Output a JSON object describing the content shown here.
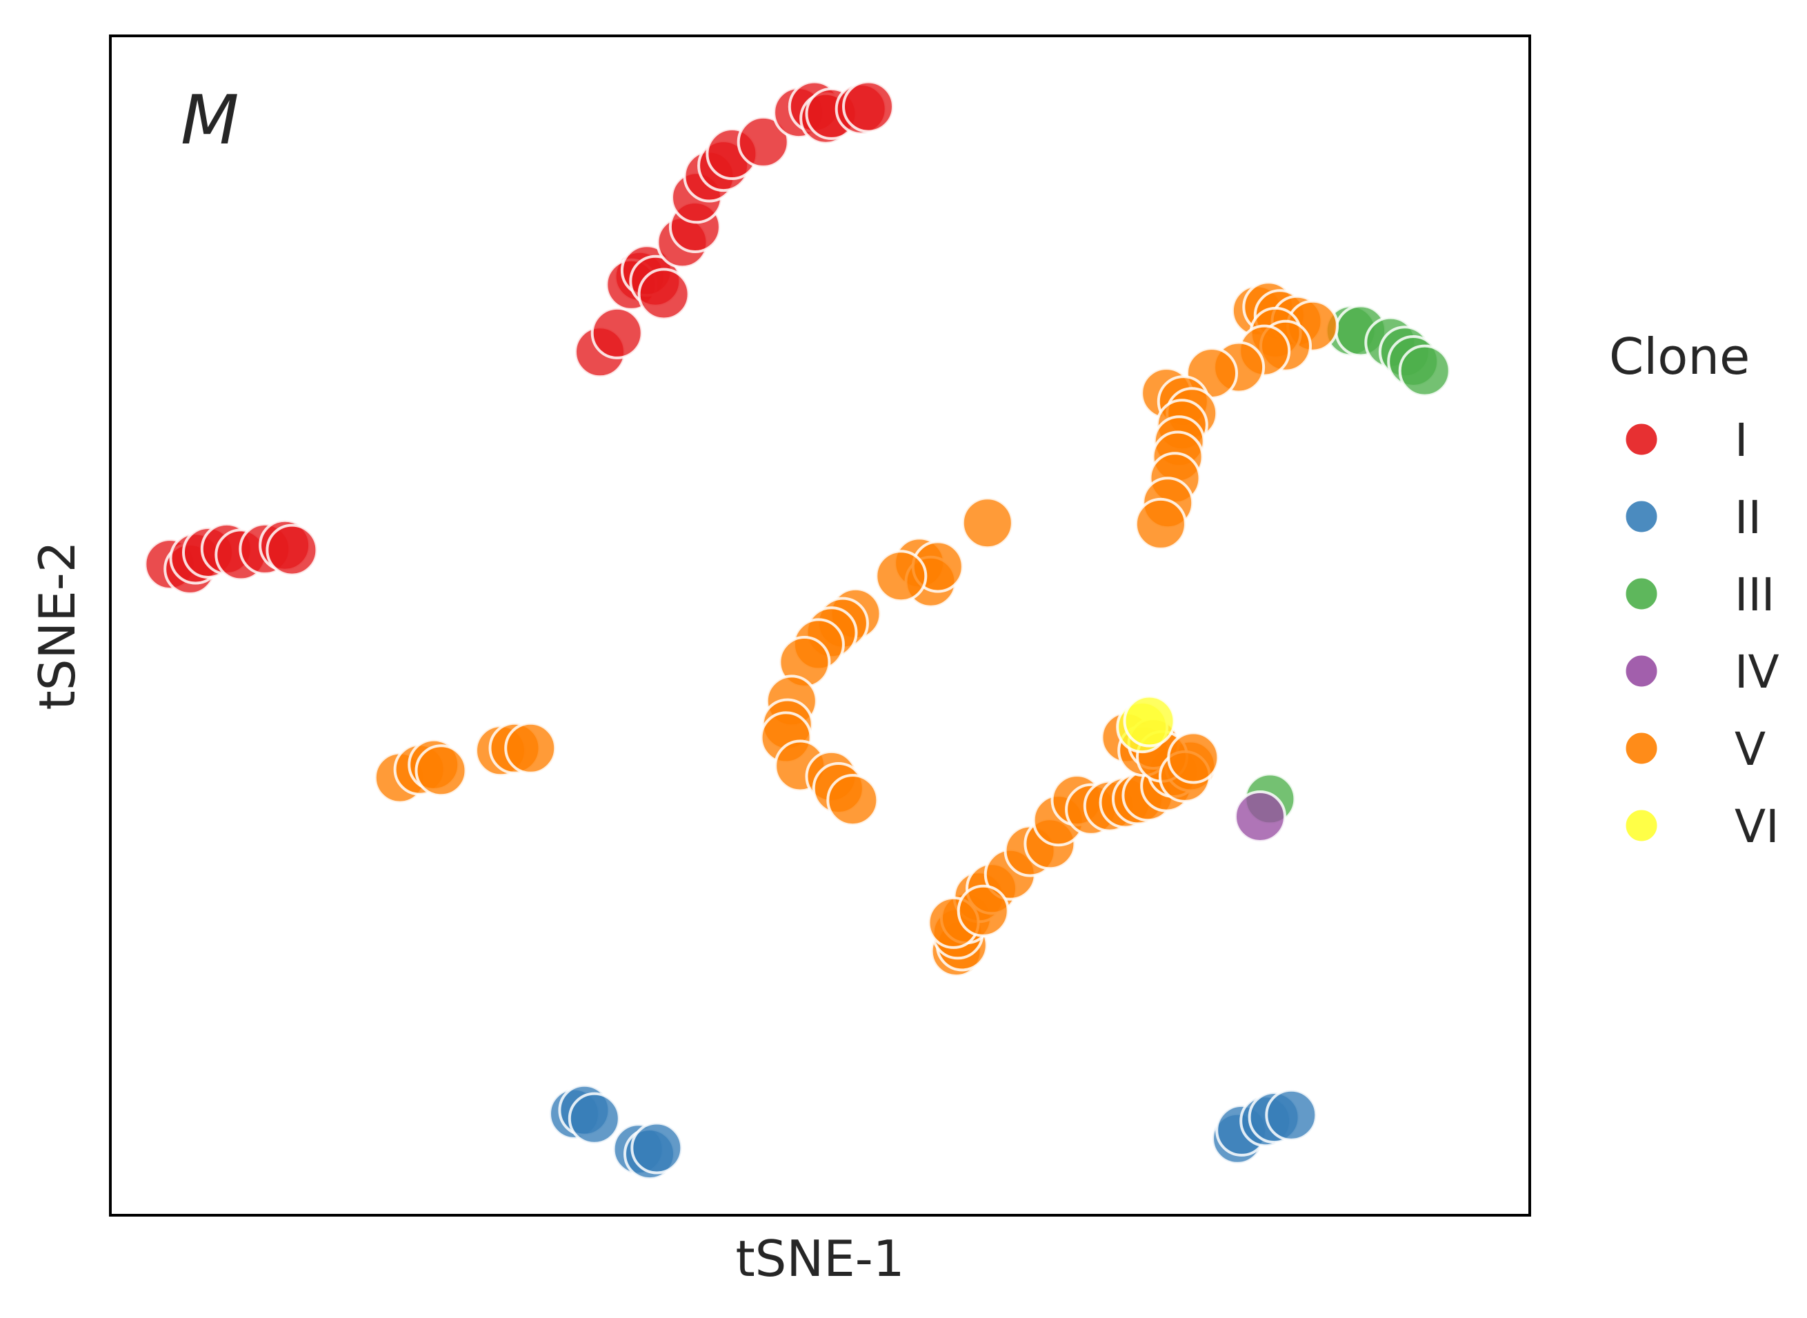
{
  "chart_data": {
    "type": "scatter",
    "panel_label": "M",
    "xlabel": "tSNE-1",
    "ylabel": "tSNE-2",
    "xlim": [
      0,
      100
    ],
    "ylim": [
      0,
      100
    ],
    "grid": false,
    "ticks": false,
    "legend": {
      "title": "Clone",
      "placement": "right"
    },
    "colors": {
      "I": "#e41a1c",
      "II": "#377eb8",
      "III": "#4daf4a",
      "IV": "#984ea3",
      "V": "#ff7f00",
      "VI": "#ffff33"
    },
    "series": [
      {
        "name": "I",
        "points": [
          [
            34.5,
            73.2
          ],
          [
            35.7,
            74.8
          ],
          [
            37.3,
            79.6
          ],
          [
            36.7,
            78.9
          ],
          [
            37.8,
            80.1
          ],
          [
            38.4,
            79.2
          ],
          [
            39.0,
            78.1
          ],
          [
            40.3,
            82.5
          ],
          [
            41.2,
            83.8
          ],
          [
            41.3,
            86.3
          ],
          [
            42.2,
            88.1
          ],
          [
            43.2,
            89.0
          ],
          [
            43.8,
            90.0
          ],
          [
            46.0,
            91.0
          ],
          [
            48.5,
            93.5
          ],
          [
            49.6,
            94.0
          ],
          [
            50.4,
            93.0
          ],
          [
            50.8,
            93.4
          ],
          [
            52.9,
            93.8
          ],
          [
            53.4,
            94.0
          ],
          [
            4.2,
            55.2
          ],
          [
            5.6,
            54.8
          ],
          [
            6.0,
            55.7
          ],
          [
            6.9,
            56.2
          ],
          [
            8.2,
            56.5
          ],
          [
            9.2,
            56.0
          ],
          [
            10.9,
            56.5
          ],
          [
            12.3,
            56.8
          ],
          [
            12.8,
            56.4
          ]
        ]
      },
      {
        "name": "II",
        "points": [
          [
            32.7,
            8.6
          ],
          [
            33.4,
            8.9
          ],
          [
            34.1,
            8.2
          ],
          [
            37.2,
            5.6
          ],
          [
            38.0,
            5.2
          ],
          [
            38.5,
            5.7
          ],
          [
            79.4,
            6.5
          ],
          [
            79.7,
            7.2
          ],
          [
            81.4,
            8.0
          ],
          [
            82.0,
            8.3
          ],
          [
            83.2,
            8.5
          ]
        ]
      },
      {
        "name": "III",
        "points": [
          [
            87.4,
            75.0
          ],
          [
            88.1,
            75.0
          ],
          [
            90.2,
            74.0
          ],
          [
            91.2,
            73.2
          ],
          [
            91.8,
            72.4
          ],
          [
            92.6,
            71.6
          ],
          [
            81.7,
            35.3
          ]
        ]
      },
      {
        "name": "IV",
        "points": [
          [
            81.0,
            33.8
          ]
        ]
      },
      {
        "name": "V",
        "points": [
          [
            80.8,
            76.7
          ],
          [
            81.6,
            77.0
          ],
          [
            82.4,
            76.3
          ],
          [
            83.6,
            75.8
          ],
          [
            84.7,
            75.4
          ],
          [
            82.1,
            74.8
          ],
          [
            82.8,
            73.7
          ],
          [
            81.3,
            73.3
          ],
          [
            79.5,
            71.9
          ],
          [
            77.6,
            71.4
          ],
          [
            74.4,
            69.7
          ],
          [
            75.6,
            69.0
          ],
          [
            76.2,
            68.0
          ],
          [
            75.5,
            67.0
          ],
          [
            75.3,
            65.6
          ],
          [
            75.2,
            64.3
          ],
          [
            75.0,
            62.5
          ],
          [
            74.5,
            60.4
          ],
          [
            74.0,
            58.6
          ],
          [
            61.8,
            58.7
          ],
          [
            57.0,
            55.3
          ],
          [
            57.8,
            53.7
          ],
          [
            58.3,
            55.0
          ],
          [
            55.7,
            54.2
          ],
          [
            52.5,
            51.0
          ],
          [
            51.6,
            50.2
          ],
          [
            50.8,
            49.4
          ],
          [
            49.9,
            48.4
          ],
          [
            48.9,
            46.9
          ],
          [
            48.0,
            43.6
          ],
          [
            47.7,
            41.6
          ],
          [
            47.6,
            40.5
          ],
          [
            48.6,
            38.1
          ],
          [
            50.8,
            37.2
          ],
          [
            51.3,
            36.2
          ],
          [
            52.3,
            35.2
          ],
          [
            20.4,
            37.1
          ],
          [
            21.8,
            37.8
          ],
          [
            22.8,
            38.2
          ],
          [
            23.3,
            37.7
          ],
          [
            27.5,
            39.4
          ],
          [
            28.5,
            39.6
          ],
          [
            29.6,
            39.6
          ],
          [
            59.6,
            22.4
          ],
          [
            60.0,
            22.9
          ],
          [
            59.7,
            23.9
          ],
          [
            60.3,
            25.2
          ],
          [
            61.2,
            27.0
          ],
          [
            62.1,
            27.7
          ],
          [
            63.4,
            28.9
          ],
          [
            64.8,
            30.9
          ],
          [
            66.2,
            31.5
          ],
          [
            66.8,
            33.5
          ],
          [
            68.1,
            35.2
          ],
          [
            69.1,
            34.4
          ],
          [
            70.4,
            34.7
          ],
          [
            71.5,
            35.0
          ],
          [
            72.4,
            35.3
          ],
          [
            73.1,
            35.6
          ],
          [
            74.4,
            36.4
          ],
          [
            74.9,
            37.6
          ],
          [
            76.1,
            38.1
          ],
          [
            71.6,
            40.5
          ],
          [
            72.8,
            39.4
          ],
          [
            73.5,
            40.0
          ],
          [
            74.1,
            38.9
          ],
          [
            75.7,
            37.2
          ],
          [
            76.3,
            38.8
          ],
          [
            59.4,
            24.8
          ],
          [
            61.5,
            25.8
          ]
        ]
      },
      {
        "name": "VI",
        "points": [
          [
            72.7,
            41.4
          ],
          [
            73.2,
            41.9
          ]
        ]
      }
    ]
  }
}
